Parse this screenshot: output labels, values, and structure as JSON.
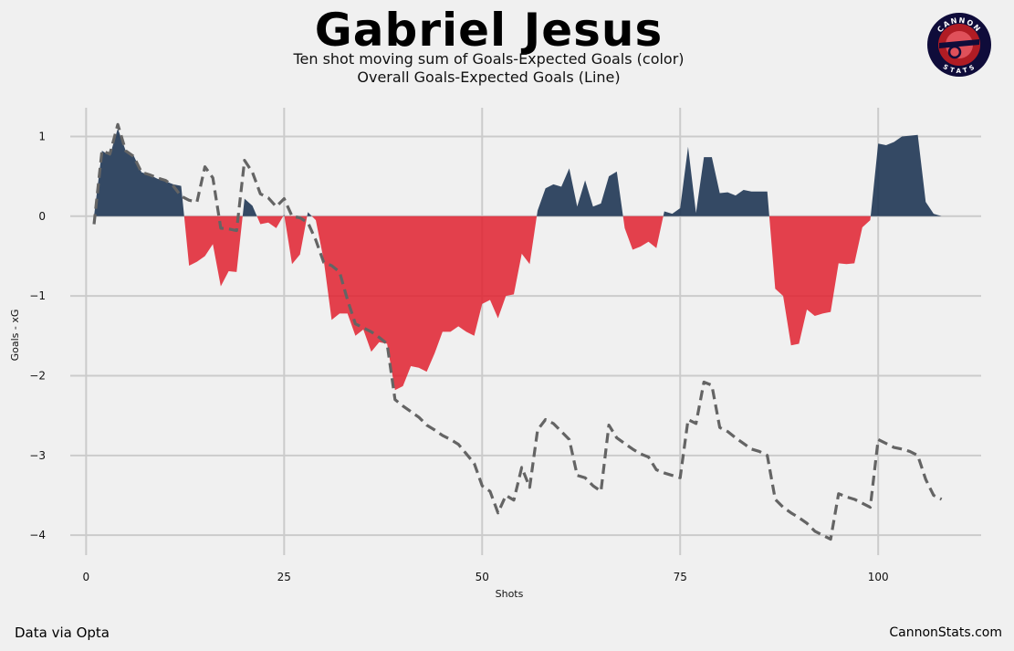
{
  "header": {
    "title": "Gabriel Jesus",
    "subtitle_line1": "Ten shot moving sum of Goals-Expected Goals (color)",
    "subtitle_line2": "Overall Goals-Expected Goals (Line)"
  },
  "footer": {
    "source": "Data via Opta",
    "site": "CannonStats.com"
  },
  "logo": {
    "top_text": "CANNON",
    "bottom_text": "STATS"
  },
  "colors": {
    "background": "#f0f0f0",
    "positive": "#1f3654",
    "negative": "#e0212f",
    "line": "#646464",
    "grid": "#cbcbcb"
  },
  "chart_data": {
    "type": "area",
    "xlabel": "Shots",
    "ylabel": "Goals - xG",
    "xlim": [
      -2,
      113
    ],
    "ylim": [
      -4.25,
      1.36
    ],
    "xticks": [
      0,
      25,
      50,
      75,
      100
    ],
    "yticks": [
      1,
      0,
      -1,
      -2,
      -3,
      -4
    ],
    "ytick_labels": [
      "1",
      "0",
      "−1",
      "−2",
      "−3",
      "−4"
    ],
    "grid": true,
    "series": [
      {
        "style": "filled area, blue above zero, red below zero",
        "x": [
          1,
          2,
          3,
          4,
          5,
          6,
          7,
          8,
          9,
          10,
          11,
          12,
          13,
          14,
          15,
          16,
          17,
          18,
          19,
          20,
          21,
          22,
          23,
          24,
          25,
          26,
          27,
          28,
          29,
          30,
          31,
          32,
          33,
          34,
          35,
          36,
          37,
          38,
          39,
          40,
          41,
          42,
          43,
          44,
          45,
          46,
          47,
          48,
          49,
          50,
          51,
          52,
          53,
          54,
          55,
          56,
          57,
          58,
          59,
          60,
          61,
          62,
          63,
          64,
          65,
          66,
          67,
          68,
          69,
          70,
          71,
          72,
          73,
          74,
          75,
          76,
          77,
          78,
          79,
          80,
          81,
          82,
          83,
          84,
          85,
          86,
          87,
          88,
          89,
          90,
          91,
          92,
          93,
          94,
          95,
          96,
          97,
          98,
          99,
          100,
          101,
          102,
          103,
          104,
          105,
          106,
          107,
          108
        ],
        "values": [
          0,
          0.82,
          0.76,
          1.1,
          0.82,
          0.76,
          0.55,
          0.52,
          0.47,
          0.44,
          0.4,
          0.38,
          -0.62,
          -0.57,
          -0.5,
          -0.35,
          -0.88,
          -0.69,
          -0.7,
          0.22,
          0.13,
          -0.1,
          -0.08,
          -0.15,
          0.02,
          -0.6,
          -0.48,
          0.05,
          -0.05,
          -0.55,
          -1.3,
          -1.22,
          -1.22,
          -1.5,
          -1.42,
          -1.7,
          -1.58,
          -1.6,
          -2.18,
          -2.13,
          -1.88,
          -1.9,
          -1.95,
          -1.72,
          -1.45,
          -1.45,
          -1.38,
          -1.45,
          -1.5,
          -1.1,
          -1.05,
          -1.28,
          -1.0,
          -0.98,
          -0.47,
          -0.6,
          0.07,
          0.35,
          0.4,
          0.37,
          0.6,
          0.12,
          0.45,
          0.12,
          0.16,
          0.5,
          0.56,
          -0.15,
          -0.42,
          -0.38,
          -0.32,
          -0.4,
          0.06,
          0.03,
          0.1,
          0.87,
          0.04,
          0.74,
          0.74,
          0.29,
          0.3,
          0.26,
          0.33,
          0.31,
          0.31,
          0.31,
          -0.91,
          -1.0,
          -1.62,
          -1.6,
          -1.17,
          -1.25,
          -1.22,
          -1.2,
          -0.59,
          -0.6,
          -0.59,
          -0.14,
          -0.05,
          0.91,
          0.89,
          0.93,
          1.0,
          1.01,
          1.02,
          0.18,
          0.03,
          0
        ]
      },
      {
        "style": "dashed line",
        "x": [
          1,
          2,
          3,
          4,
          5,
          6,
          7,
          8,
          9,
          10,
          11,
          12,
          13,
          14,
          15,
          16,
          17,
          18,
          19,
          20,
          21,
          22,
          23,
          24,
          25,
          26,
          27,
          28,
          29,
          30,
          31,
          32,
          33,
          34,
          35,
          36,
          37,
          38,
          39,
          40,
          41,
          42,
          43,
          44,
          45,
          46,
          47,
          48,
          49,
          50,
          51,
          52,
          53,
          54,
          55,
          56,
          57,
          58,
          59,
          60,
          61,
          62,
          63,
          64,
          65,
          66,
          67,
          68,
          69,
          70,
          71,
          72,
          73,
          74,
          75,
          76,
          77,
          78,
          79,
          80,
          81,
          82,
          83,
          84,
          85,
          86,
          87,
          88,
          89,
          90,
          91,
          92,
          93,
          94,
          95,
          96,
          97,
          98,
          99,
          100,
          101,
          102,
          103,
          104,
          105,
          106,
          107,
          108
        ],
        "values": [
          -0.1,
          0.82,
          0.78,
          1.15,
          0.82,
          0.75,
          0.55,
          0.52,
          0.48,
          0.45,
          0.38,
          0.25,
          0.2,
          0.18,
          0.62,
          0.48,
          -0.15,
          -0.16,
          -0.18,
          0.7,
          0.55,
          0.28,
          0.23,
          0.12,
          0.22,
          0.0,
          -0.02,
          -0.08,
          -0.3,
          -0.58,
          -0.62,
          -0.7,
          -1.05,
          -1.35,
          -1.4,
          -1.45,
          -1.52,
          -1.6,
          -2.3,
          -2.38,
          -2.45,
          -2.52,
          -2.62,
          -2.68,
          -2.75,
          -2.8,
          -2.86,
          -2.98,
          -3.1,
          -3.38,
          -3.45,
          -3.72,
          -3.5,
          -3.56,
          -3.15,
          -3.4,
          -2.68,
          -2.55,
          -2.6,
          -2.7,
          -2.8,
          -3.25,
          -3.28,
          -3.38,
          -3.45,
          -2.62,
          -2.78,
          -2.85,
          -2.92,
          -2.98,
          -3.02,
          -3.18,
          -3.22,
          -3.25,
          -3.28,
          -2.55,
          -2.6,
          -2.08,
          -2.12,
          -2.65,
          -2.7,
          -2.78,
          -2.85,
          -2.92,
          -2.95,
          -3.0,
          -3.55,
          -3.65,
          -3.72,
          -3.78,
          -3.85,
          -3.95,
          -4.0,
          -4.05,
          -3.48,
          -3.52,
          -3.55,
          -3.6,
          -3.65,
          -2.8,
          -2.85,
          -2.9,
          -2.92,
          -2.95,
          -3.0,
          -3.3,
          -3.5,
          -3.55
        ]
      }
    ]
  }
}
